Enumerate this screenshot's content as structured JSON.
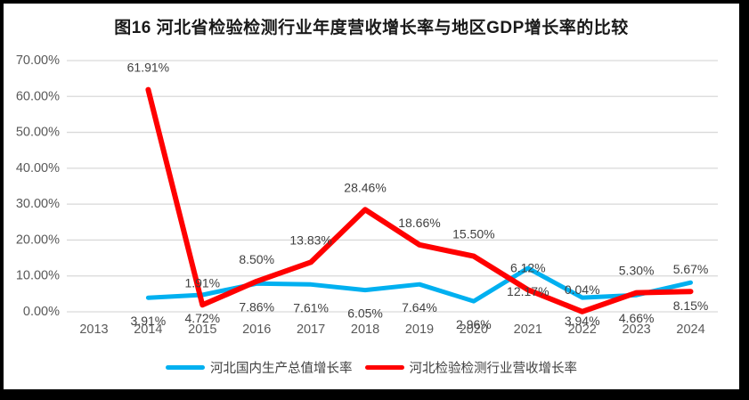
{
  "title": "图16 河北省检验检测行业年度营收增长率与地区GDP增长率的比较",
  "chart_data": {
    "type": "line",
    "title": "图16 河北省检验检测行业年度营收增长率与地区GDP增长率的比较",
    "categories": [
      "2013",
      "2014",
      "2015",
      "2016",
      "2017",
      "2018",
      "2019",
      "2020",
      "2021",
      "2022",
      "2023",
      "2024"
    ],
    "series": [
      {
        "name": "河北国内生产总值增长率",
        "color": "#00B0F0",
        "label_position": "below",
        "values": [
          null,
          3.91,
          4.72,
          7.86,
          7.61,
          6.05,
          7.64,
          2.96,
          12.17,
          3.94,
          4.66,
          8.15
        ],
        "labels": [
          null,
          "3.91%",
          "4.72%",
          "7.86%",
          "7.61%",
          "6.05%",
          "7.64%",
          "2.96%",
          "12.17%",
          "3.94%",
          "4.66%",
          "8.15%"
        ]
      },
      {
        "name": "河北检验检测行业营收增长率",
        "color": "#FF0000",
        "label_position": "above",
        "values": [
          null,
          61.91,
          1.91,
          8.5,
          13.83,
          28.46,
          18.66,
          15.5,
          6.12,
          0.04,
          5.3,
          5.67
        ],
        "labels": [
          null,
          "61.91%",
          "1.91%",
          "8.50%",
          "13.83%",
          "28.46%",
          "18.66%",
          "15.50%",
          "6.12%",
          "0.04%",
          "5.30%",
          "5.67%"
        ]
      }
    ],
    "ylim": [
      0,
      70
    ],
    "y_tick_labels": [
      "0.00%",
      "10.00%",
      "20.00%",
      "30.00%",
      "40.00%",
      "50.00%",
      "60.00%",
      "70.00%"
    ],
    "xlabel": "",
    "ylabel": "",
    "grid": true,
    "legend_position": "bottom",
    "colors": {
      "gridline": "#D9D9D9",
      "axis_text": "#595959",
      "data_label_text": "#404040",
      "title_text": "#1a1a1a",
      "frame": "#000000",
      "background": "#ffffff"
    }
  }
}
